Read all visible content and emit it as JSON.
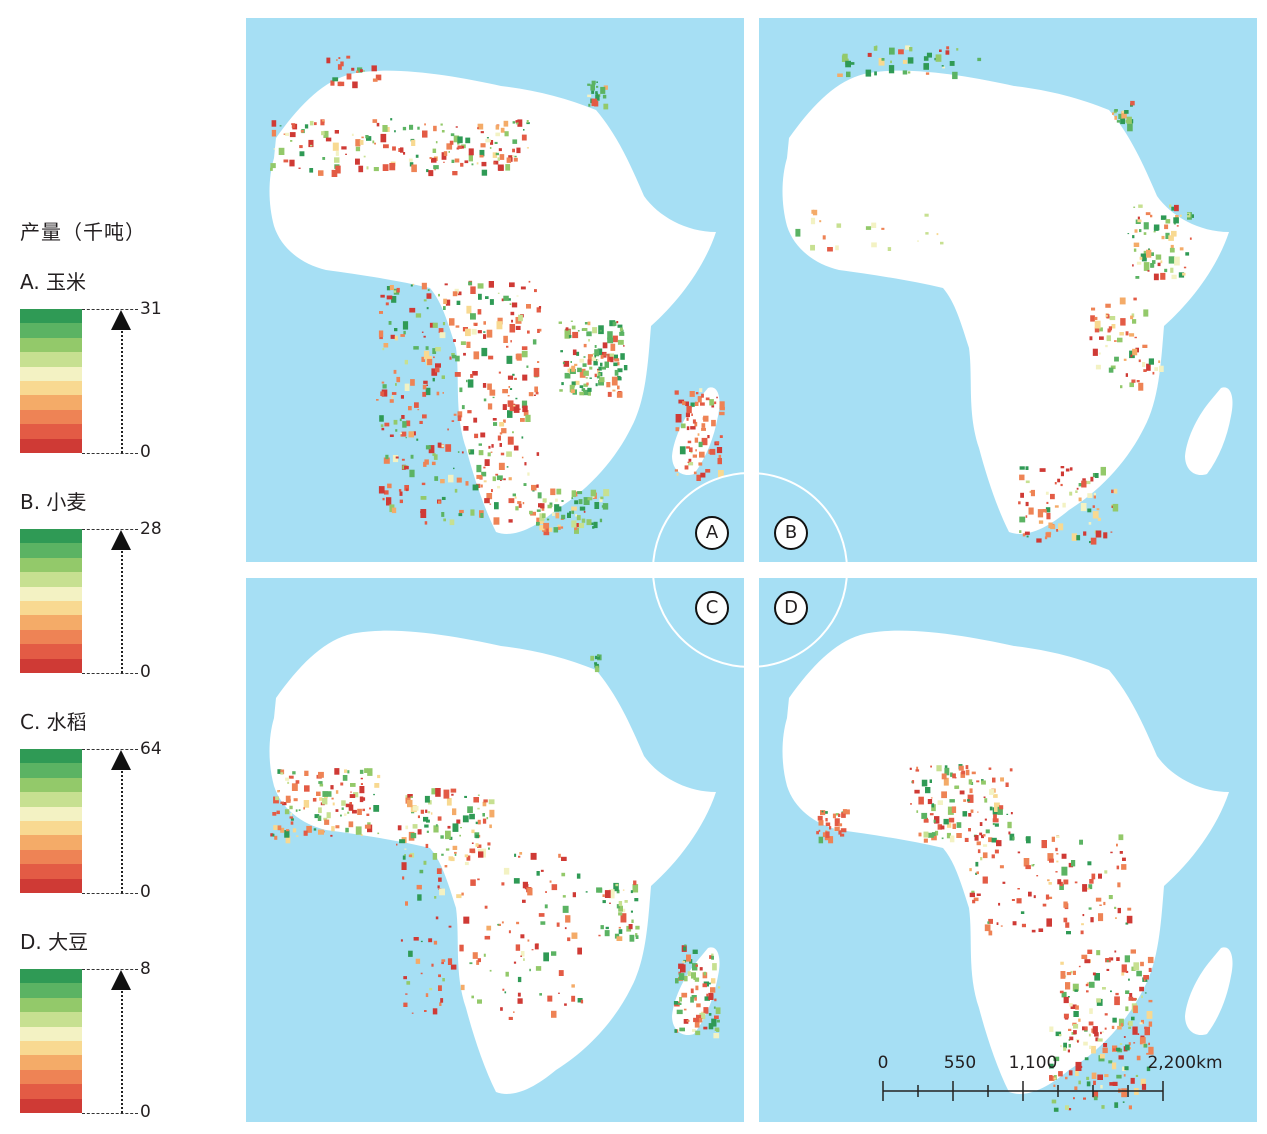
{
  "legend": {
    "title": "产量（千吨）",
    "ramp_colors": [
      "#2f9a55",
      "#5bb363",
      "#93c96a",
      "#c7e091",
      "#f3f2c3",
      "#f8d991",
      "#f4ab68",
      "#ee8355",
      "#e35b45",
      "#cf3a35"
    ],
    "crops": [
      {
        "label": "A. 玉米",
        "max": "31",
        "min": "0"
      },
      {
        "label": "B. 小麦",
        "max": "28",
        "min": "0"
      },
      {
        "label": "C. 水稻",
        "max": "64",
        "min": "0"
      },
      {
        "label": "D. 大豆",
        "max": "8",
        "min": "0"
      }
    ]
  },
  "panels": [
    {
      "id": "A",
      "badge": "A"
    },
    {
      "id": "B",
      "badge": "B"
    },
    {
      "id": "C",
      "badge": "C"
    },
    {
      "id": "D",
      "badge": "D"
    }
  ],
  "scale_bar": {
    "labels": [
      "0",
      "550",
      "1,100",
      "2,200km"
    ],
    "values_km": [
      0,
      550,
      1100,
      2200
    ]
  },
  "colors": {
    "ocean": "#a6dff4",
    "land": "#ffffff",
    "high": "#2f9a55",
    "low": "#cf3a35"
  }
}
